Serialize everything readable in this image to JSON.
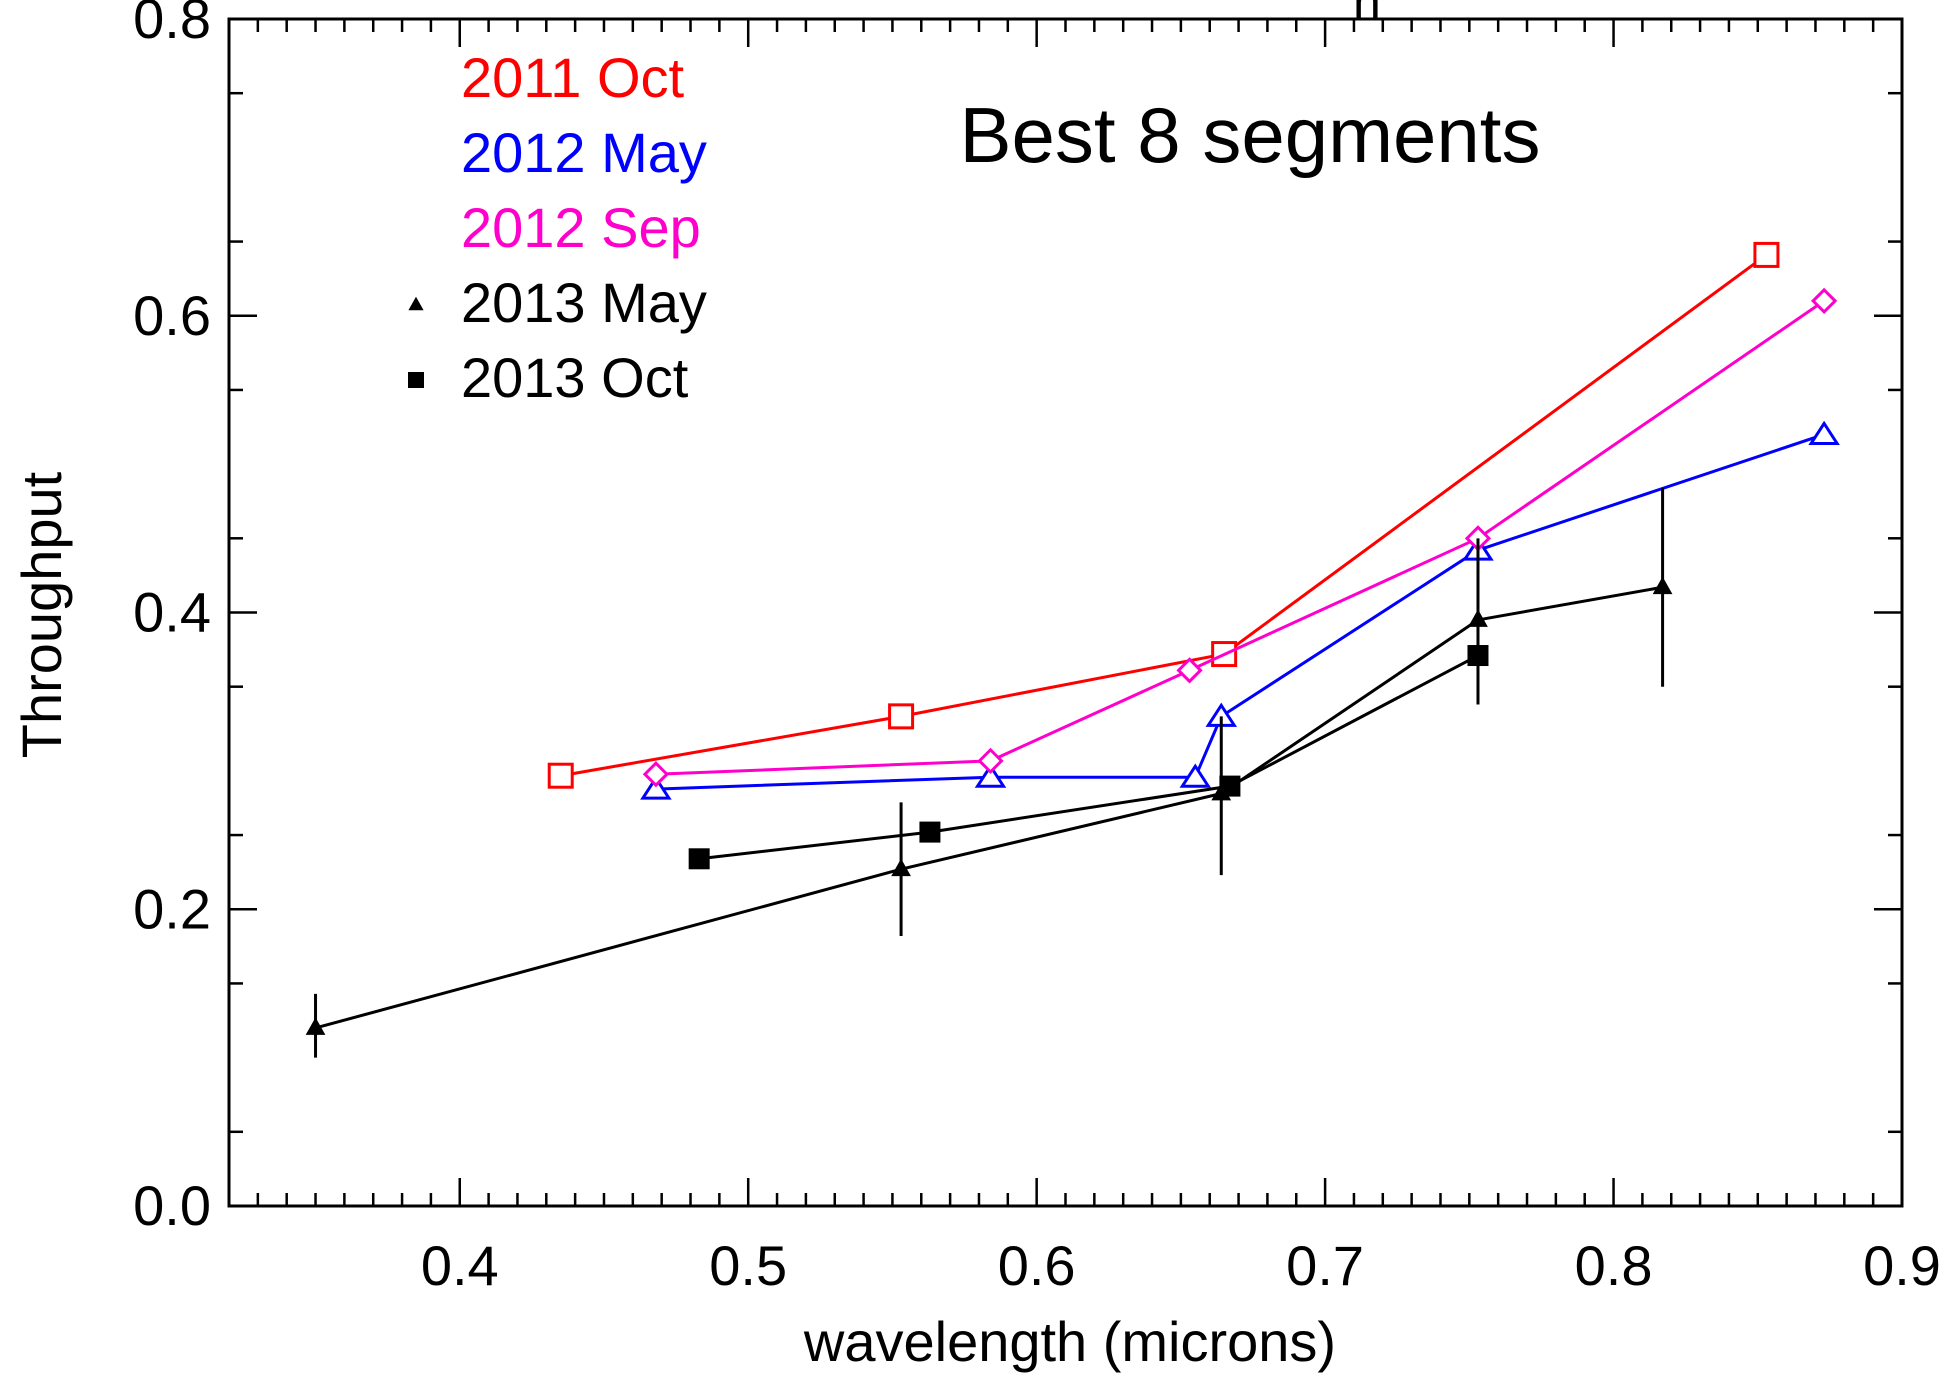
{
  "chart_data": {
    "type": "line",
    "title": "Best 8 segments",
    "top_title_fragment": "h",
    "xlabel": "wavelength (microns)",
    "ylabel": "Throughput",
    "xlim": [
      0.32,
      0.9
    ],
    "ylim": [
      0.0,
      0.8
    ],
    "x_ticks": [
      0.4,
      0.5,
      0.6,
      0.7,
      0.8,
      0.9
    ],
    "x_tick_labels": [
      "0.4",
      "0.5",
      "0.6",
      "0.7",
      "0.8",
      "0.9"
    ],
    "y_ticks": [
      0.0,
      0.2,
      0.4,
      0.6,
      0.8
    ],
    "y_tick_labels": [
      "0.0",
      "0.2",
      "0.4",
      "0.6",
      "0.8"
    ],
    "legend_position": "top-left",
    "grid": false,
    "series": [
      {
        "name": "2011 Oct",
        "color": "#ff0000",
        "marker": "open-square",
        "x": [
          0.435,
          0.553,
          0.665,
          0.853
        ],
        "y": [
          0.29,
          0.33,
          0.372,
          0.641
        ]
      },
      {
        "name": "2012 May",
        "color": "#0000ff",
        "marker": "open-triangle",
        "x": [
          0.468,
          0.584,
          0.655,
          0.664,
          0.753,
          0.873
        ],
        "y": [
          0.281,
          0.289,
          0.289,
          0.33,
          0.442,
          0.52
        ]
      },
      {
        "name": "2012 Sep",
        "color": "#ff00cc",
        "marker": "open-diamond",
        "x": [
          0.468,
          0.584,
          0.653,
          0.753,
          0.873
        ],
        "y": [
          0.291,
          0.3,
          0.361,
          0.45,
          0.61
        ]
      },
      {
        "name": "2013 May",
        "color": "#000000",
        "marker": "filled-triangle",
        "x": [
          0.35,
          0.553,
          0.664,
          0.753,
          0.817
        ],
        "y": [
          0.12,
          0.227,
          0.278,
          0.395,
          0.417
        ],
        "yerr_low": [
          0.1,
          0.182,
          0.223,
          0.338,
          0.35
        ],
        "yerr_high": [
          0.143,
          0.272,
          0.33,
          0.45,
          0.484
        ]
      },
      {
        "name": "2013 Oct",
        "color": "#000000",
        "marker": "filled-square",
        "x": [
          0.483,
          0.563,
          0.667,
          0.753
        ],
        "y": [
          0.234,
          0.252,
          0.283,
          0.371
        ]
      }
    ]
  }
}
